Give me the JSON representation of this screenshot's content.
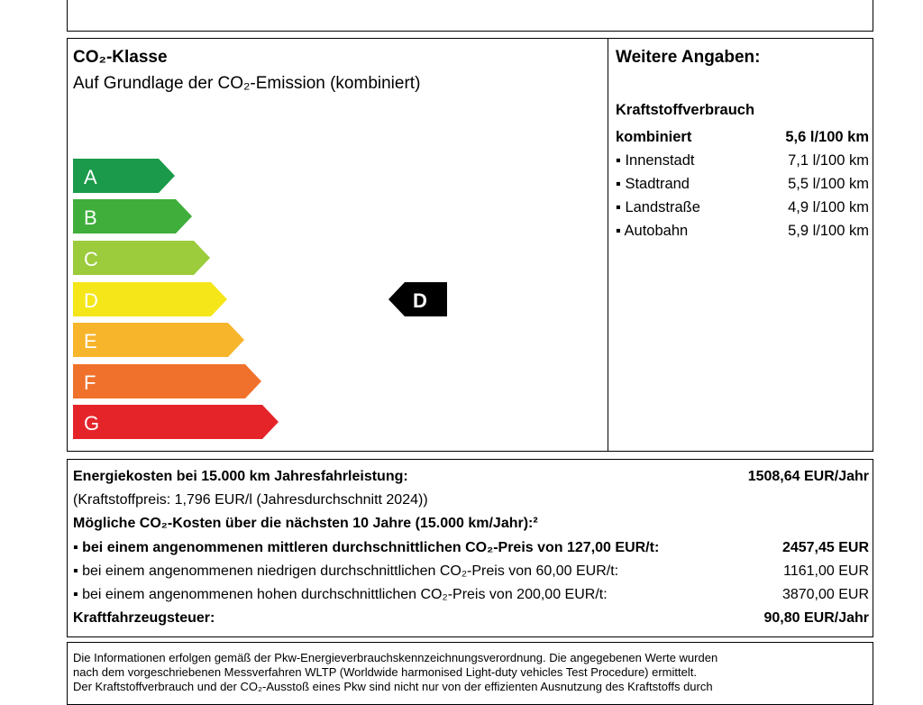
{
  "co2_class": {
    "title": "CO₂-Klasse",
    "subtitle": "Auf Grundlage der CO₂-Emission (kombiniert)",
    "classes": [
      "A",
      "B",
      "C",
      "D",
      "E",
      "F",
      "G"
    ],
    "current": "D"
  },
  "details": {
    "title": "Weitere Angaben:",
    "section": "Kraftstoffverbrauch",
    "rows": [
      [
        "kombiniert",
        "5,6 l/100 km"
      ],
      [
        "Innenstadt",
        "7,1 l/100 km"
      ],
      [
        "Stadtrand",
        "5,5 l/100 km"
      ],
      [
        "Landstraße",
        "4,9 l/100 km"
      ],
      [
        "Autobahn",
        "5,9 l/100 km"
      ]
    ]
  },
  "costs": {
    "rows": [
      [
        "Energiekosten bei 15.000 km Jahresfahrleistung:",
        "1508,64 EUR/Jahr"
      ],
      [
        "(Kraftstoffpreis: 1,796 EUR/l (Jahresdurchschnitt 2024))"
      ],
      [
        "Mögliche CO₂-Kosten über die nächsten 10 Jahre (15.000 km/Jahr):²"
      ],
      [
        "bei einem angenommenen mittleren durchschnittlichen CO₂-Preis von 127,00 EUR/t:",
        "2457,45 EUR"
      ],
      [
        "bei einem angenommenen niedrigen durchschnittlichen CO₂-Preis von 60,00 EUR/t:",
        "1161,00 EUR"
      ],
      [
        "bei einem angenommenen hohen durchschnittlichen CO₂-Preis von 200,00 EUR/t:",
        "3870,00 EUR"
      ],
      [
        "Kraftfahrzeugsteuer:",
        "90,80 EUR/Jahr"
      ]
    ]
  },
  "footnote": {
    "lines": [
      "Die Informationen erfolgen gemäß der Pkw-Energieverbrauchskennzeichnungsverordnung. Die angegebenen Werte wurden",
      "nach dem vorgeschriebenen Messverfahren WLTP (Worldwide harmonised Light-duty vehicles Test Procedure) ermittelt.",
      "Der Kraftstoffverbrauch und der CO₂-Ausstoß eines Pkw sind nicht nur von der effizienten Ausnutzung des Kraftstoffs durch"
    ]
  }
}
